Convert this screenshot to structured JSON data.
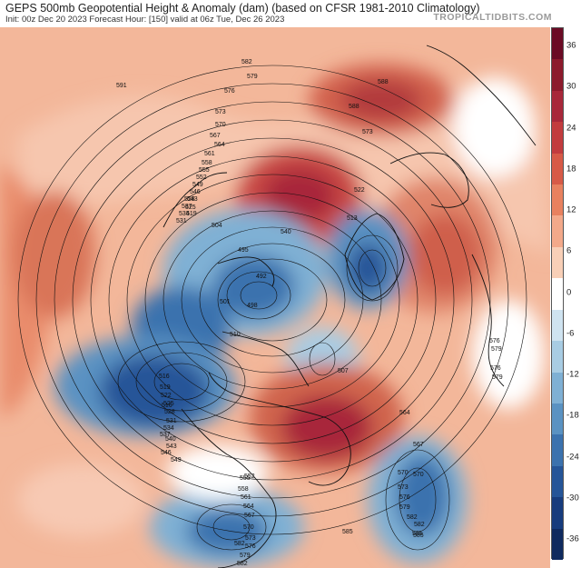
{
  "header": {
    "title": "GEPS 500mb Geopotential Height & Anomaly (dam) (based on CFSR 1981-2010 Climatology)",
    "subtitle": "Init: 00z Dec 20 2023   Forecast Hour: [150]   valid at 06z Tue, Dec 26 2023",
    "brand": "TROPICALTIDBITS.COM"
  },
  "colorbar": {
    "labels": [
      "36",
      "30",
      "24",
      "18",
      "12",
      "6",
      "0",
      "-6",
      "-12",
      "-18",
      "-24",
      "-30",
      "-36"
    ],
    "colors": [
      "#6b0b25",
      "#8c1a2c",
      "#a8283a",
      "#c23c3e",
      "#d75a47",
      "#e8815f",
      "#f3a98a",
      "#f8cfb7",
      "#ffffff",
      "#cfe3f0",
      "#a8cce3",
      "#7fb0d4",
      "#5a92c2",
      "#3b72ae",
      "#255598",
      "#173c7d",
      "#0f2a5f"
    ]
  },
  "map": {
    "contour_labels": [
      "591",
      "582",
      "579",
      "576",
      "573",
      "570",
      "567",
      "564",
      "561",
      "558",
      "555",
      "552",
      "549",
      "546",
      "543",
      "540",
      "537",
      "534",
      "531",
      "528",
      "525",
      "522",
      "519",
      "516",
      "513",
      "510",
      "507",
      "504",
      "501",
      "498",
      "495",
      "492",
      "570",
      "573",
      "576",
      "579",
      "582",
      "585",
      "564",
      "567",
      "570",
      "573",
      "576",
      "579",
      "582",
      "585",
      "588",
      "552",
      "555",
      "558",
      "561",
      "564",
      "567",
      "570",
      "573",
      "576",
      "579",
      "582",
      "585",
      "588",
      "516",
      "519",
      "522",
      "525",
      "528",
      "531",
      "534",
      "537",
      "540",
      "543",
      "546",
      "549",
      "576",
      "579",
      "582"
    ]
  }
}
